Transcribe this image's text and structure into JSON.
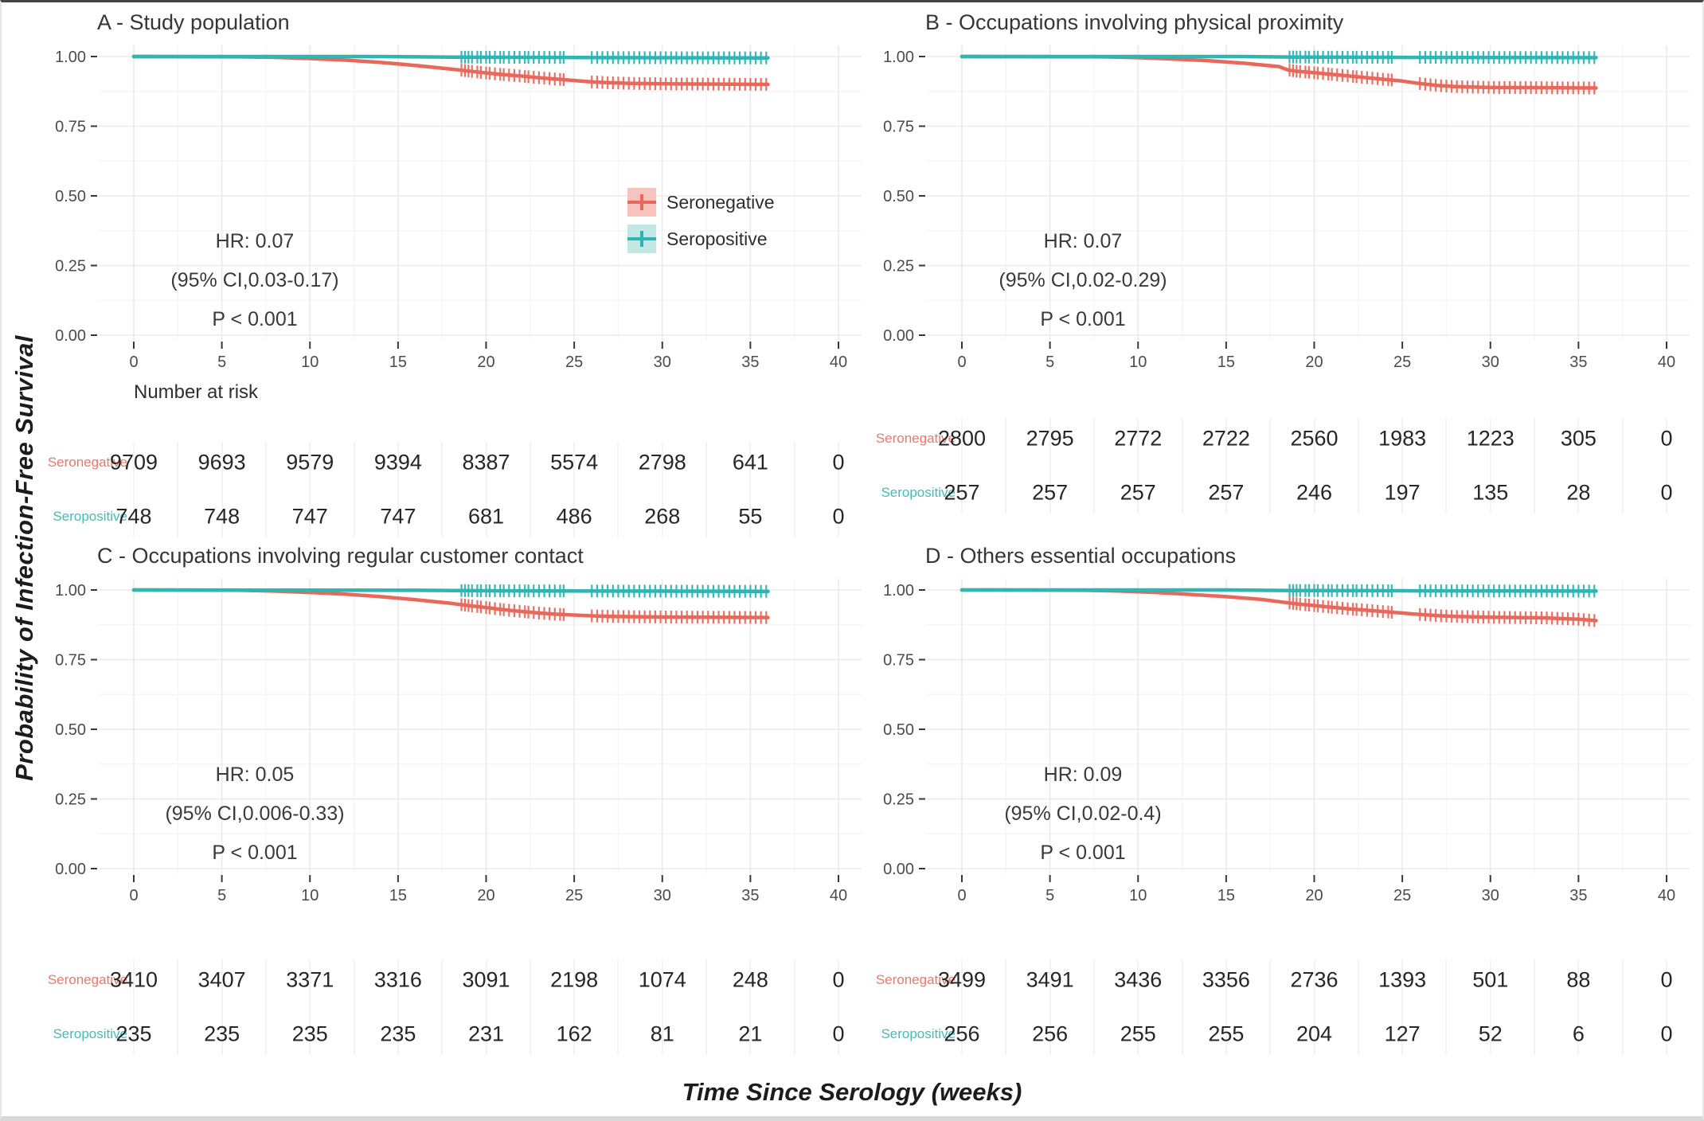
{
  "figure": {
    "ylabel": "Probability of Infection-Free Survival",
    "xlabel": "Time Since Serology (weeks)",
    "number_at_risk_label": "Number at risk",
    "colors": {
      "seronegative": "#E8695C",
      "seronegative_fill": "#F6C3BE",
      "seropositive": "#2FB5B2",
      "seropositive_fill": "#C2E8E6",
      "grid_major": "#EAEAEA",
      "grid_minor": "#F5F5F5",
      "tick_mark": "#383838",
      "tick_text": "#4B4B4B"
    }
  },
  "legend": {
    "position": "inside-top-right-of-panel-A",
    "items": [
      {
        "label": "Seronegative",
        "key": "seronegative"
      },
      {
        "label": "Seropositive",
        "key": "seropositive"
      }
    ]
  },
  "chart_data": [
    {
      "type": "line",
      "panel_id": "A",
      "title": "A - Study population",
      "stats": {
        "hr": "HR: 0.07",
        "ci": "(95% CI,0.03-0.17)",
        "p": "P < 0.001"
      },
      "xlim": [
        0,
        40
      ],
      "ylim": [
        0,
        1
      ],
      "xticks": [
        "0",
        "5",
        "10",
        "15",
        "20",
        "25",
        "30",
        "35",
        "40"
      ],
      "yticks": [
        "0.00",
        "0.25",
        "0.50",
        "0.75",
        "1.00"
      ],
      "grid": true,
      "show_legend": true,
      "show_number_at_risk": true,
      "series": [
        {
          "name": "Seronegative",
          "color_key": "seronegative",
          "points": [
            [
              0,
              1
            ],
            [
              6,
              0.999
            ],
            [
              8,
              0.997
            ],
            [
              10,
              0.993
            ],
            [
              12,
              0.987
            ],
            [
              14,
              0.979
            ],
            [
              16,
              0.968
            ],
            [
              18,
              0.955
            ],
            [
              19,
              0.948
            ],
            [
              20,
              0.941
            ],
            [
              21,
              0.935
            ],
            [
              22,
              0.93
            ],
            [
              23,
              0.924
            ],
            [
              24,
              0.919
            ],
            [
              25,
              0.914
            ],
            [
              26,
              0.909
            ],
            [
              27,
              0.906
            ],
            [
              28,
              0.904
            ],
            [
              30,
              0.902
            ],
            [
              33,
              0.901
            ],
            [
              36,
              0.9
            ]
          ]
        },
        {
          "name": "Seropositive",
          "color_key": "seropositive",
          "points": [
            [
              0,
              1
            ],
            [
              14,
              1
            ],
            [
              18,
              0.998
            ],
            [
              22,
              0.997
            ],
            [
              28,
              0.996
            ],
            [
              36,
              0.995
            ]
          ]
        }
      ],
      "censor_x": [
        18.6,
        18.8,
        19.0,
        19.2,
        19.5,
        19.7,
        20.0,
        20.2,
        20.5,
        20.8,
        21.0,
        21.3,
        21.6,
        21.9,
        22.2,
        22.4,
        22.7,
        23.0,
        23.3,
        23.6,
        23.9,
        24.2,
        24.4,
        26.0,
        26.3,
        26.6,
        26.9,
        27.2,
        27.5,
        27.8,
        28.1,
        28.4,
        28.7,
        29.0,
        29.3,
        29.6,
        29.9,
        30.2,
        30.5,
        30.8,
        31.1,
        31.4,
        31.7,
        32.0,
        32.3,
        32.6,
        32.9,
        33.2,
        33.5,
        33.8,
        34.1,
        34.4,
        34.7,
        35.0,
        35.3,
        35.6,
        35.9
      ],
      "risk_table": {
        "times": [
          0,
          5,
          10,
          15,
          20,
          25,
          30,
          35,
          40
        ],
        "rows": [
          {
            "label": "Seronegative",
            "color_key": "seronegative",
            "values": [
              "9709",
              "9693",
              "9579",
              "9394",
              "8387",
              "5574",
              "2798",
              "641",
              "0"
            ]
          },
          {
            "label": "Seropositive",
            "color_key": "seropositive",
            "values": [
              "748",
              "748",
              "747",
              "747",
              "681",
              "486",
              "268",
              "55",
              "0"
            ]
          }
        ]
      }
    },
    {
      "type": "line",
      "panel_id": "B",
      "title": "B - Occupations involving physical proximity",
      "stats": {
        "hr": "HR: 0.07",
        "ci": "(95% CI,0.02-0.29)",
        "p": "P < 0.001"
      },
      "xlim": [
        0,
        40
      ],
      "ylim": [
        0,
        1
      ],
      "xticks": [
        "0",
        "5",
        "10",
        "15",
        "20",
        "25",
        "30",
        "35",
        "40"
      ],
      "yticks": [
        "0.00",
        "0.25",
        "0.50",
        "0.75",
        "1.00"
      ],
      "grid": true,
      "show_legend": false,
      "show_number_at_risk": false,
      "series": [
        {
          "name": "Seronegative",
          "color_key": "seronegative",
          "points": [
            [
              0,
              1
            ],
            [
              8,
              0.999
            ],
            [
              10,
              0.996
            ],
            [
              12,
              0.991
            ],
            [
              14,
              0.985
            ],
            [
              16,
              0.976
            ],
            [
              18,
              0.964
            ],
            [
              18.5,
              0.952
            ],
            [
              19,
              0.947
            ],
            [
              20,
              0.942
            ],
            [
              21,
              0.936
            ],
            [
              22,
              0.93
            ],
            [
              23,
              0.924
            ],
            [
              24,
              0.918
            ],
            [
              25,
              0.912
            ],
            [
              26,
              0.903
            ],
            [
              27,
              0.896
            ],
            [
              28,
              0.892
            ],
            [
              30,
              0.889
            ],
            [
              36,
              0.887
            ]
          ]
        },
        {
          "name": "Seropositive",
          "color_key": "seropositive",
          "points": [
            [
              0,
              1
            ],
            [
              16,
              1
            ],
            [
              19,
              0.998
            ],
            [
              24,
              0.997
            ],
            [
              36,
              0.996
            ]
          ]
        }
      ],
      "censor_x": [
        18.6,
        18.8,
        19.0,
        19.2,
        19.5,
        19.7,
        20.0,
        20.2,
        20.5,
        20.8,
        21.0,
        21.3,
        21.6,
        21.9,
        22.2,
        22.4,
        22.7,
        23.0,
        23.3,
        23.6,
        23.9,
        24.2,
        24.4,
        26.0,
        26.3,
        26.6,
        26.9,
        27.2,
        27.5,
        27.8,
        28.1,
        28.4,
        28.7,
        29.0,
        29.3,
        29.6,
        29.9,
        30.2,
        30.5,
        30.8,
        31.1,
        31.4,
        31.7,
        32.0,
        32.3,
        32.6,
        32.9,
        33.2,
        33.5,
        33.8,
        34.1,
        34.4,
        34.7,
        35.0,
        35.3,
        35.6,
        35.9
      ],
      "risk_table": {
        "times": [
          0,
          5,
          10,
          15,
          20,
          25,
          30,
          35,
          40
        ],
        "rows": [
          {
            "label": "Seronegative",
            "color_key": "seronegative",
            "values": [
              "2800",
              "2795",
              "2772",
              "2722",
              "2560",
              "1983",
              "1223",
              "305",
              "0"
            ]
          },
          {
            "label": "Seropositive",
            "color_key": "seropositive",
            "values": [
              "257",
              "257",
              "257",
              "257",
              "246",
              "197",
              "135",
              "28",
              "0"
            ]
          }
        ]
      }
    },
    {
      "type": "line",
      "panel_id": "C",
      "title": "C - Occupations involving regular customer contact",
      "stats": {
        "hr": "HR: 0.05",
        "ci": "(95% CI,0.006-0.33)",
        "p": "P < 0.001"
      },
      "xlim": [
        0,
        40
      ],
      "ylim": [
        0,
        1
      ],
      "xticks": [
        "0",
        "5",
        "10",
        "15",
        "20",
        "25",
        "30",
        "35",
        "40"
      ],
      "yticks": [
        "0.00",
        "0.25",
        "0.50",
        "0.75",
        "1.00"
      ],
      "grid": true,
      "show_legend": false,
      "show_number_at_risk": false,
      "series": [
        {
          "name": "Seronegative",
          "color_key": "seronegative",
          "points": [
            [
              0,
              1
            ],
            [
              6,
              0.999
            ],
            [
              8,
              0.996
            ],
            [
              10,
              0.991
            ],
            [
              12,
              0.985
            ],
            [
              14,
              0.976
            ],
            [
              16,
              0.965
            ],
            [
              18,
              0.952
            ],
            [
              19,
              0.944
            ],
            [
              20,
              0.937
            ],
            [
              21,
              0.929
            ],
            [
              22,
              0.923
            ],
            [
              23,
              0.917
            ],
            [
              24,
              0.913
            ],
            [
              25,
              0.91
            ],
            [
              26,
              0.907
            ],
            [
              27,
              0.905
            ],
            [
              30,
              0.903
            ],
            [
              36,
              0.901
            ]
          ]
        },
        {
          "name": "Seropositive",
          "color_key": "seropositive",
          "points": [
            [
              0,
              1
            ],
            [
              16,
              0.999
            ],
            [
              20,
              0.997
            ],
            [
              28,
              0.996
            ],
            [
              36,
              0.995
            ]
          ]
        }
      ],
      "censor_x": [
        18.6,
        18.8,
        19.0,
        19.2,
        19.5,
        19.7,
        20.0,
        20.2,
        20.5,
        20.8,
        21.0,
        21.3,
        21.6,
        21.9,
        22.2,
        22.4,
        22.7,
        23.0,
        23.3,
        23.6,
        23.9,
        24.2,
        24.4,
        26.0,
        26.3,
        26.6,
        26.9,
        27.2,
        27.5,
        27.8,
        28.1,
        28.4,
        28.7,
        29.0,
        29.3,
        29.6,
        29.9,
        30.2,
        30.5,
        30.8,
        31.1,
        31.4,
        31.7,
        32.0,
        32.3,
        32.6,
        32.9,
        33.2,
        33.5,
        33.8,
        34.1,
        34.4,
        34.7,
        35.0,
        35.3,
        35.6,
        35.9
      ],
      "risk_table": {
        "times": [
          0,
          5,
          10,
          15,
          20,
          25,
          30,
          35,
          40
        ],
        "rows": [
          {
            "label": "Seronegative",
            "color_key": "seronegative",
            "values": [
              "3410",
              "3407",
              "3371",
              "3316",
              "3091",
              "2198",
              "1074",
              "248",
              "0"
            ]
          },
          {
            "label": "Seropositive",
            "color_key": "seropositive",
            "values": [
              "235",
              "235",
              "235",
              "235",
              "231",
              "162",
              "81",
              "21",
              "0"
            ]
          }
        ]
      }
    },
    {
      "type": "line",
      "panel_id": "D",
      "title": "D - Others essential occupations",
      "stats": {
        "hr": "HR: 0.09",
        "ci": "(95% CI,0.02-0.4)",
        "p": "P < 0.001"
      },
      "xlim": [
        0,
        40
      ],
      "ylim": [
        0,
        1
      ],
      "xticks": [
        "0",
        "5",
        "10",
        "15",
        "20",
        "25",
        "30",
        "35",
        "40"
      ],
      "yticks": [
        "0.00",
        "0.25",
        "0.50",
        "0.75",
        "1.00"
      ],
      "grid": true,
      "show_legend": false,
      "show_number_at_risk": false,
      "series": [
        {
          "name": "Seronegative",
          "color_key": "seronegative",
          "points": [
            [
              0,
              1
            ],
            [
              7,
              0.999
            ],
            [
              9,
              0.996
            ],
            [
              11,
              0.991
            ],
            [
              13,
              0.984
            ],
            [
              15,
              0.976
            ],
            [
              17,
              0.966
            ],
            [
              18,
              0.958
            ],
            [
              19,
              0.95
            ],
            [
              20,
              0.944
            ],
            [
              21,
              0.938
            ],
            [
              22,
              0.932
            ],
            [
              23,
              0.927
            ],
            [
              24,
              0.922
            ],
            [
              25,
              0.917
            ],
            [
              26,
              0.912
            ],
            [
              27,
              0.908
            ],
            [
              28,
              0.905
            ],
            [
              30,
              0.902
            ],
            [
              33,
              0.9
            ],
            [
              35,
              0.895
            ],
            [
              36,
              0.89
            ]
          ]
        },
        {
          "name": "Seropositive",
          "color_key": "seropositive",
          "points": [
            [
              0,
              1
            ],
            [
              15,
              1
            ],
            [
              19,
              0.998
            ],
            [
              25,
              0.997
            ],
            [
              36,
              0.996
            ]
          ]
        }
      ],
      "censor_x": [
        18.6,
        18.8,
        19.0,
        19.2,
        19.5,
        19.7,
        20.0,
        20.2,
        20.5,
        20.8,
        21.0,
        21.3,
        21.6,
        21.9,
        22.2,
        22.4,
        22.7,
        23.0,
        23.3,
        23.6,
        23.9,
        24.2,
        24.4,
        26.0,
        26.3,
        26.6,
        26.9,
        27.2,
        27.5,
        27.8,
        28.1,
        28.4,
        28.7,
        29.0,
        29.3,
        29.6,
        29.9,
        30.2,
        30.5,
        30.8,
        31.1,
        31.4,
        31.7,
        32.0,
        32.3,
        32.6,
        32.9,
        33.2,
        33.5,
        33.8,
        34.1,
        34.4,
        34.7,
        35.0,
        35.3,
        35.6,
        35.9
      ],
      "risk_table": {
        "times": [
          0,
          5,
          10,
          15,
          20,
          25,
          30,
          35,
          40
        ],
        "rows": [
          {
            "label": "Seronegative",
            "color_key": "seronegative",
            "values": [
              "3499",
              "3491",
              "3436",
              "3356",
              "2736",
              "1393",
              "501",
              "88",
              "0"
            ]
          },
          {
            "label": "Seropositive",
            "color_key": "seropositive",
            "values": [
              "256",
              "256",
              "255",
              "255",
              "204",
              "127",
              "52",
              "6",
              "0"
            ]
          }
        ]
      }
    }
  ]
}
